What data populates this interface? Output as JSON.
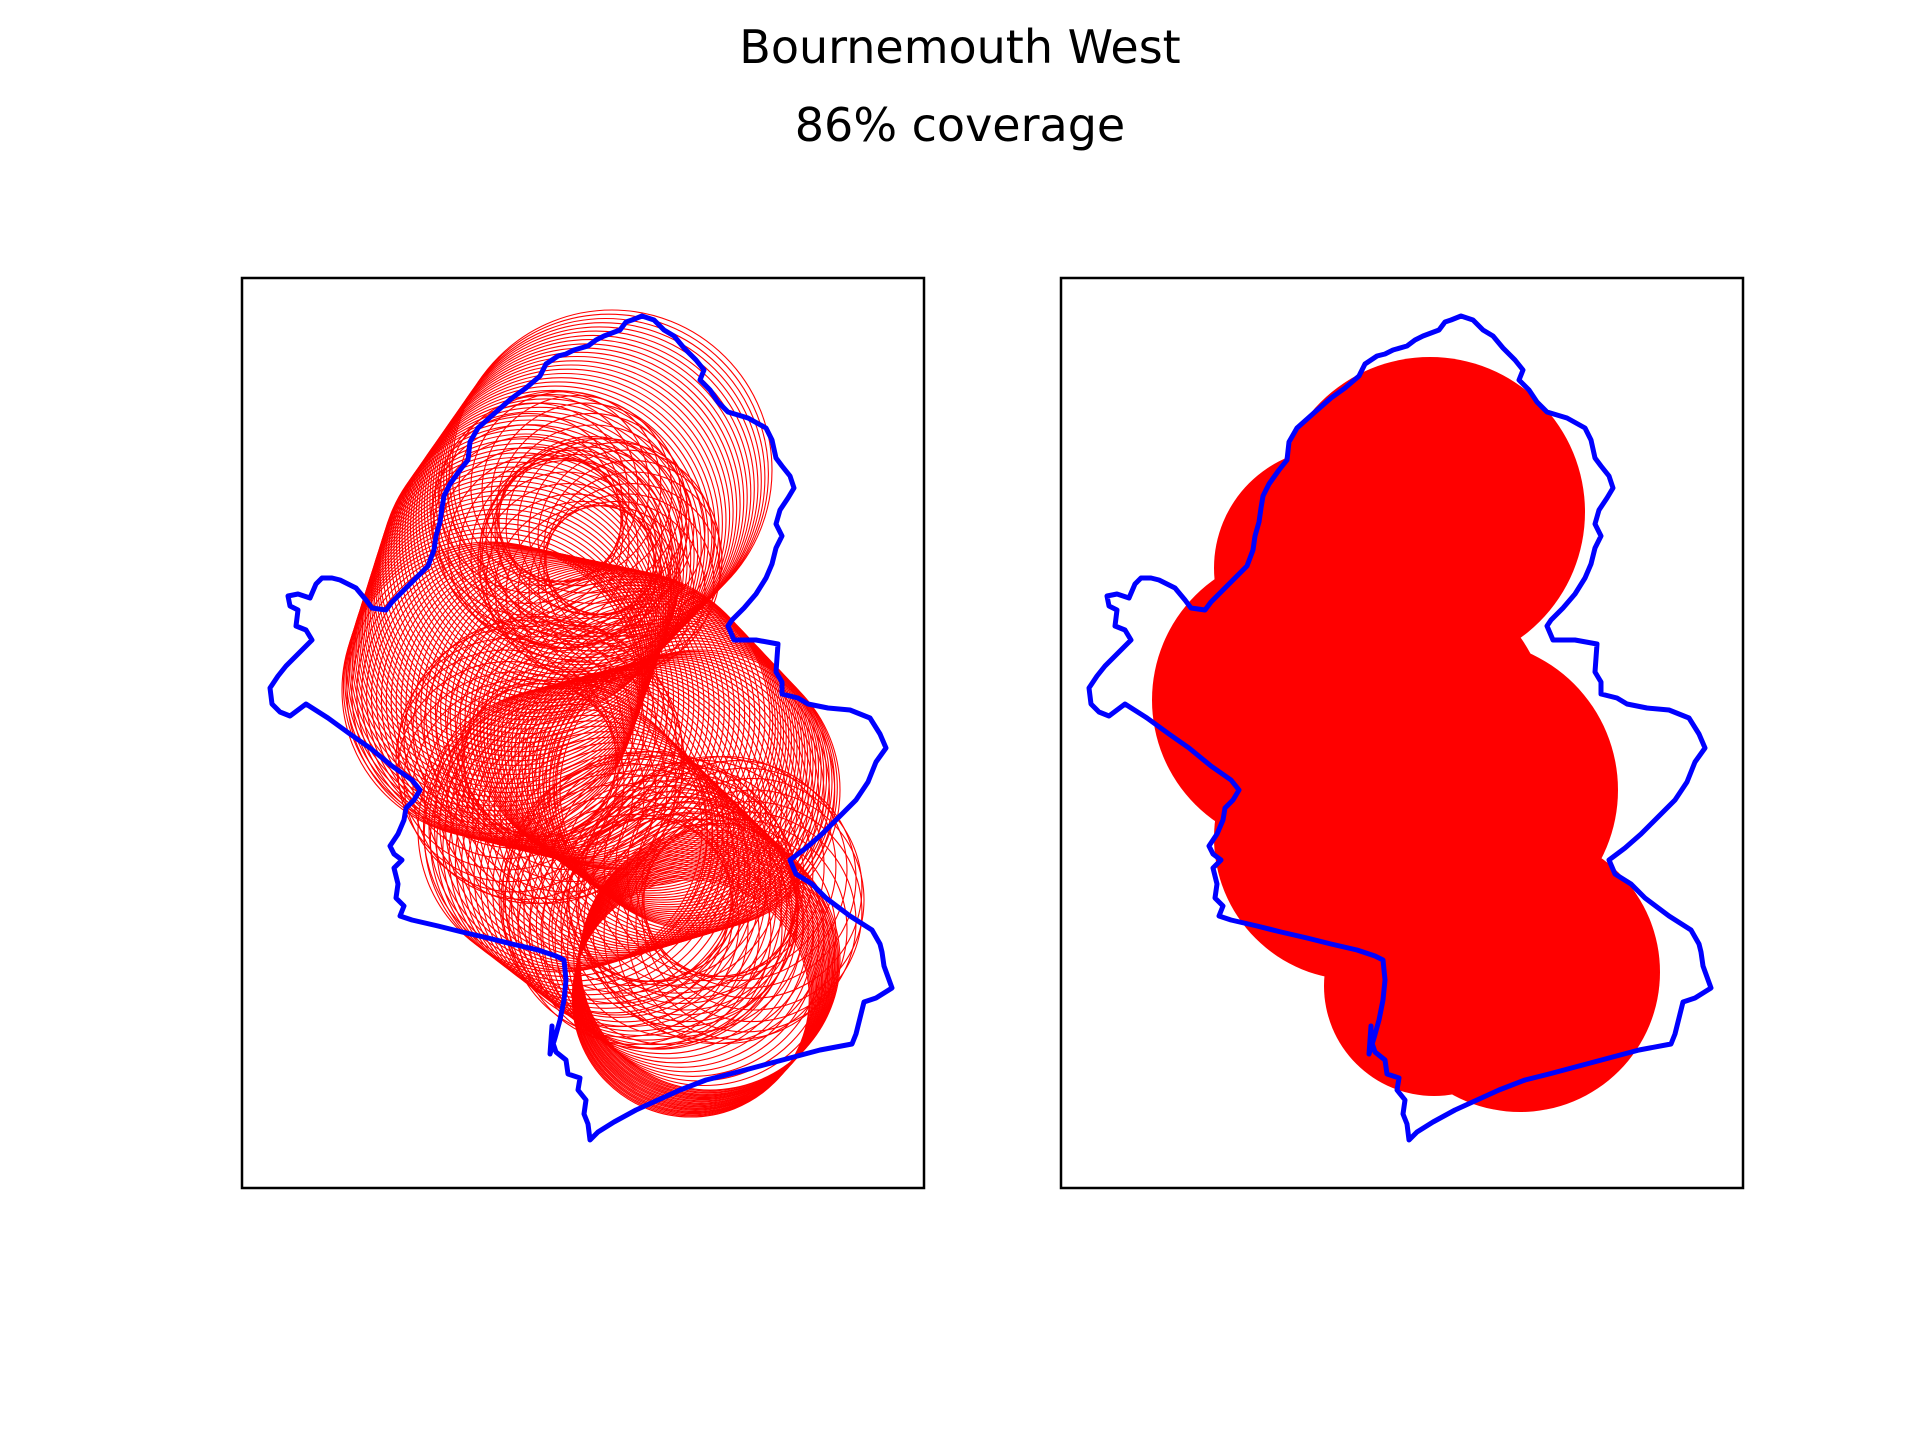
{
  "figure": {
    "title": "Bournemouth West",
    "subtitle": "86% coverage"
  },
  "colors": {
    "boundary": "#0000ff",
    "coverage": "#ff0000",
    "frame": "#000000",
    "background": "#ffffff"
  },
  "panels": [
    {
      "name": "outline-panel",
      "style": "outlined-circles"
    },
    {
      "name": "filled-panel",
      "style": "filled-circles"
    }
  ],
  "coverage_percent": 86
}
